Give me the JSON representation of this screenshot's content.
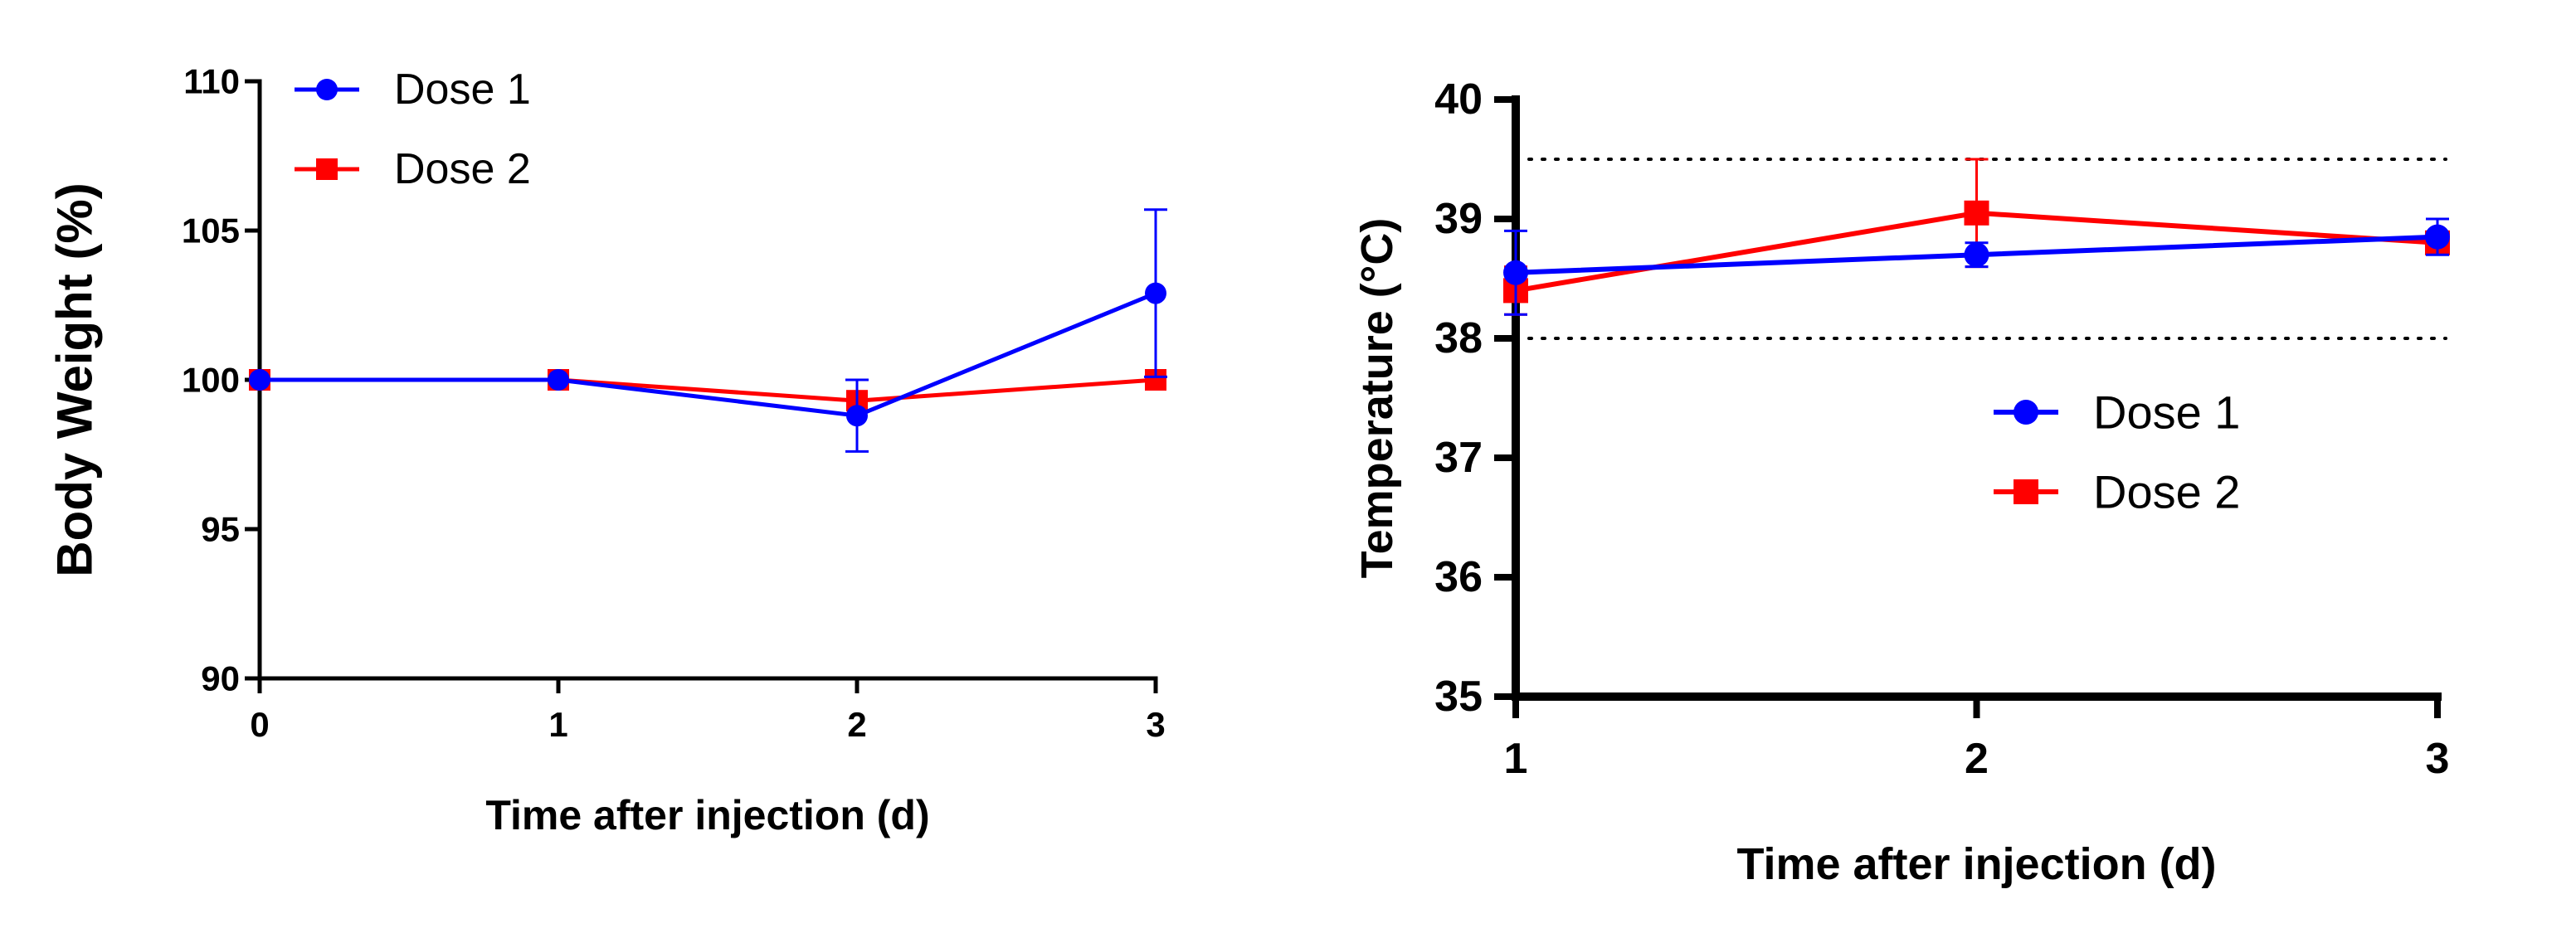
{
  "chart_data": [
    {
      "type": "line",
      "title": "",
      "xlabel": "Time after injection (d)",
      "ylabel": "Body Weight (%)",
      "xlim": [
        0,
        3
      ],
      "ylim": [
        90,
        110
      ],
      "xticks": [
        0,
        1,
        2,
        3
      ],
      "yticks": [
        90,
        95,
        100,
        105,
        110
      ],
      "grid": false,
      "legend": "top-left",
      "reference_lines": [],
      "series": [
        {
          "name": "Dose 1",
          "color": "#0000ff",
          "marker": "circle",
          "x": [
            0,
            1,
            2,
            3
          ],
          "y": [
            100,
            100,
            98.8,
            102.9
          ],
          "err": [
            0,
            0,
            1.2,
            2.8
          ]
        },
        {
          "name": "Dose 2",
          "color": "#ff0000",
          "marker": "square",
          "x": [
            0,
            1,
            2,
            3
          ],
          "y": [
            100,
            100,
            99.3,
            100
          ],
          "err": [
            0,
            0,
            0,
            0
          ]
        }
      ]
    },
    {
      "type": "line",
      "title": "",
      "xlabel": "Time after injection (d)",
      "ylabel": "Temperature (°C)",
      "xlim": [
        1,
        3
      ],
      "ylim": [
        35,
        40
      ],
      "xticks": [
        1,
        2,
        3
      ],
      "yticks": [
        35,
        36,
        37,
        38,
        39,
        40
      ],
      "grid": false,
      "legend": "center",
      "reference_lines": [
        38,
        39.5
      ],
      "series": [
        {
          "name": "Dose 1",
          "color": "#0000ff",
          "marker": "circle",
          "x": [
            1,
            2,
            3
          ],
          "y": [
            38.55,
            38.7,
            38.85
          ],
          "err": [
            0.35,
            0.1,
            0.15
          ]
        },
        {
          "name": "Dose 2",
          "color": "#ff0000",
          "marker": "square",
          "x": [
            1,
            2,
            3
          ],
          "y": [
            38.4,
            39.05,
            38.8
          ],
          "err": [
            0.2,
            0.45,
            0.05
          ]
        }
      ]
    }
  ]
}
